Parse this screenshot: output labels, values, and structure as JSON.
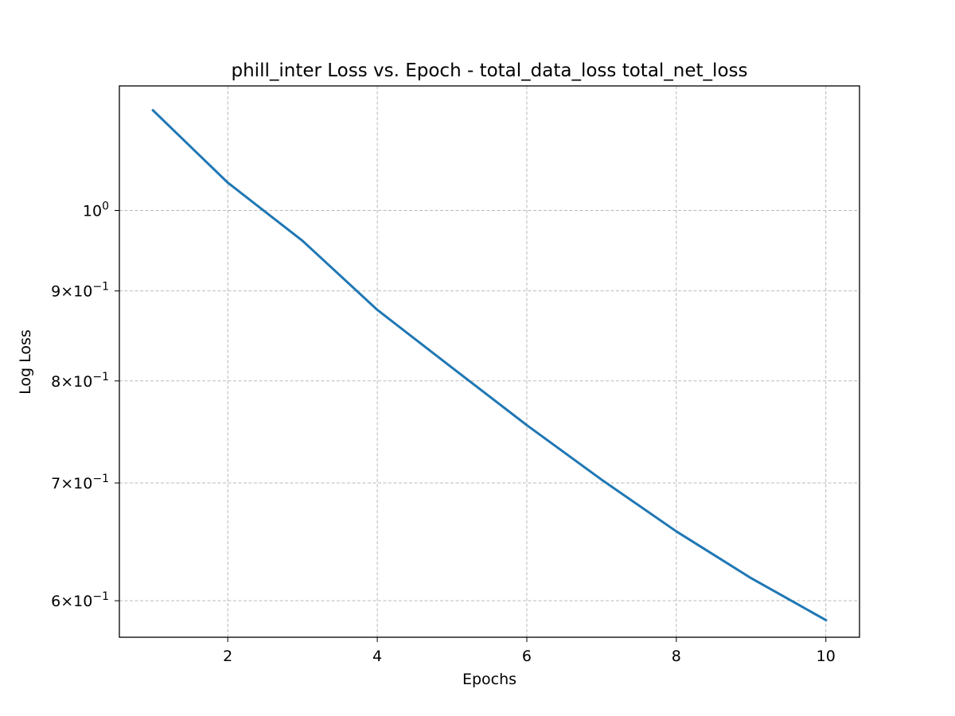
{
  "chart_data": {
    "type": "line",
    "title": "phill_inter Loss vs. Epoch - total_data_loss total_net_loss",
    "xlabel": "Epochs",
    "ylabel": "Log Loss",
    "xscale": "linear",
    "yscale": "log",
    "xlim": [
      0.55,
      10.45
    ],
    "ylim": [
      0.572,
      1.177
    ],
    "grid": true,
    "legend": "none",
    "x_ticks": [
      {
        "value": 2,
        "label": "2"
      },
      {
        "value": 4,
        "label": "4"
      },
      {
        "value": 6,
        "label": "6"
      },
      {
        "value": 8,
        "label": "8"
      },
      {
        "value": 10,
        "label": "10"
      }
    ],
    "y_ticks": [
      {
        "value": 1.0,
        "base": "10",
        "exp": "0"
      },
      {
        "value": 0.9,
        "mant": "9",
        "base": "10",
        "exp": "−1"
      },
      {
        "value": 0.8,
        "mant": "8",
        "base": "10",
        "exp": "−1"
      },
      {
        "value": 0.7,
        "mant": "7",
        "base": "10",
        "exp": "−1"
      },
      {
        "value": 0.6,
        "mant": "6",
        "base": "10",
        "exp": "−1"
      }
    ],
    "series": [
      {
        "color": "#1f77b4",
        "x": [
          1,
          2,
          3,
          4,
          5,
          6,
          7,
          8,
          9,
          10
        ],
        "y": [
          1.14,
          1.037,
          0.961,
          0.878,
          0.814,
          0.755,
          0.703,
          0.657,
          0.618,
          0.585
        ]
      }
    ]
  }
}
